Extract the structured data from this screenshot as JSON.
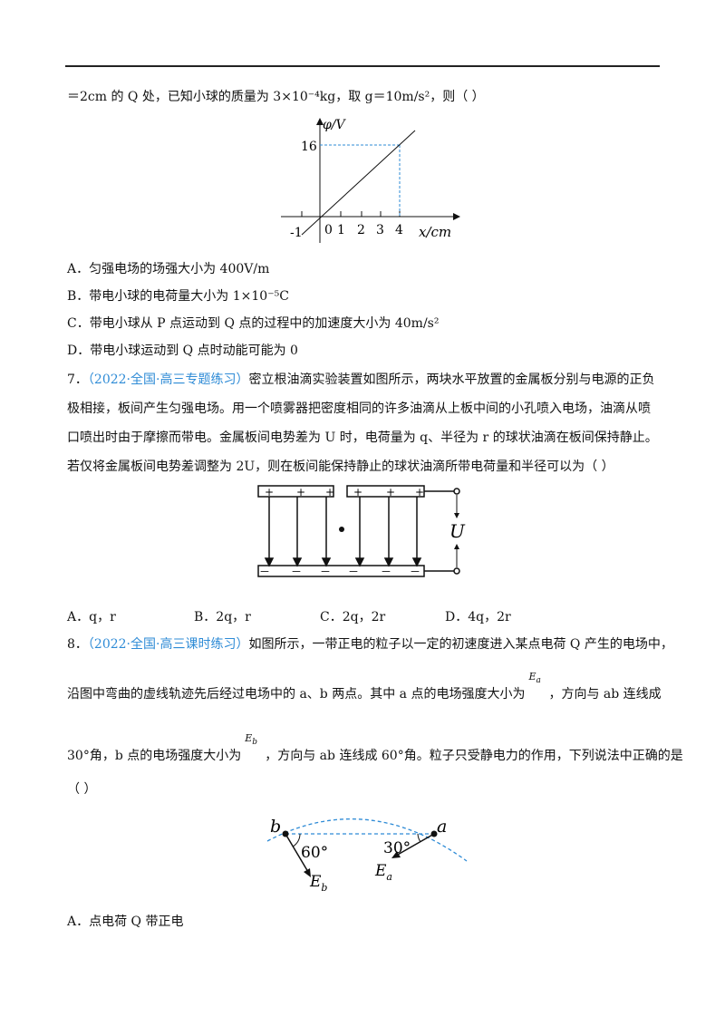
{
  "q6": {
    "stem_line": "＝2cm 的 Q 处，已知小球的质量为 3×10⁻⁴kg，取 g＝10m/s²，则（        ）",
    "graph": {
      "y_label": "φ/V",
      "x_label": "x/cm",
      "y_tick": "16",
      "x_ticks": [
        "-1",
        "0",
        "1",
        "2",
        "3",
        "4"
      ]
    },
    "options": [
      "A．匀强电场的场强大小为 400V/m",
      "B．带电小球的电荷量大小为 1×10⁻⁵C",
      "C．带电小球从 P 点运动到 Q 点的过程中的加速度大小为 40m/s²",
      "D．带电小球运动到 Q 点时动能可能为 0"
    ]
  },
  "q7": {
    "number": "7．",
    "tag": "（2022·全国·高三专题练习）",
    "lines": [
      "密立根油滴实验装置如图所示，两块水平放置的金属板分别与电源的正负",
      "极相接，板间产生匀强电场。用一个喷雾器把密度相同的许多油滴从上板中间的小孔喷入电场，油滴从喷",
      "口喷出时由于摩擦而带电。金属板间电势差为 U 时，电荷量为 q、半径为 r 的球状油滴在板间保持静止。",
      "若仅将金属板间电势差调整为 2U，则在板间能保持静止的球状油滴所带电荷量和半径可以为（        ）"
    ],
    "figure": {
      "plus": "+",
      "minus": "－",
      "voltage_label": "U"
    },
    "options": [
      "A．q，r",
      "B．2q，r",
      "C．2q，2r",
      "D．4q，2r"
    ]
  },
  "q8": {
    "number": "8．",
    "tag": "（2022·全国·高三课时练习）",
    "line1": "如图所示，一带正电的粒子以一定的初速度进入某点电荷 Q 产生的电场中，",
    "line2a": "沿图中弯曲的虚线轨迹先后经过电场中的 a、b 两点。其中 a 点的电场强度大小为",
    "line2b": "，方向与 ab 连线成",
    "line3a": "30°角，b 点的电场强度大小为",
    "line3b": "，方向与 ab 连线成 60°角。粒子只受静电力的作用，下列说法中正确的是",
    "paren": "（        ）",
    "Ea": "E",
    "Ea_sub": "a",
    "Eb": "E",
    "Eb_sub": "b",
    "figure": {
      "point_a": "a",
      "point_b": "b",
      "angle_b": "60°",
      "angle_a": "30°",
      "Eb": "E",
      "Eb_sub": "b",
      "Ea": "E",
      "Ea_sub": "a"
    },
    "options": [
      "A．点电荷 Q 带正电"
    ]
  },
  "accent_color": "#2e8bd6"
}
